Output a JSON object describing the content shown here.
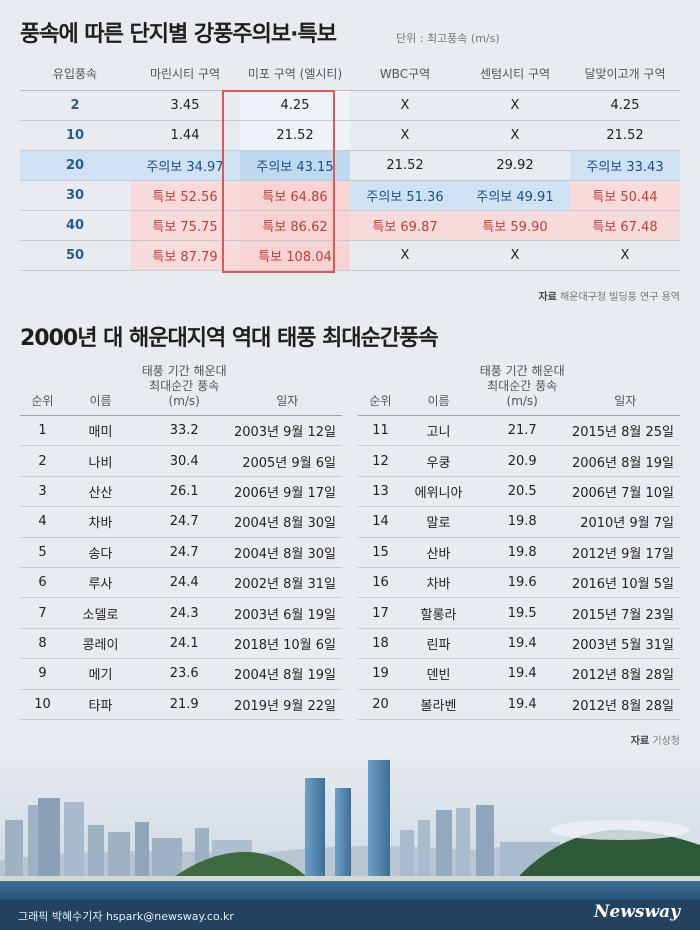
{
  "title1": "풍속에 따른 단지별 강풍주의보·특보",
  "unit": "단위 : 최고풍속 (m/s)",
  "table1": {
    "headers": [
      "유입풍속",
      "마린시티 구역",
      "미포 구역 (엘시티)",
      "WBC구역",
      "센텀시티 구역",
      "달맞이고개 구역"
    ],
    "rows": [
      [
        "2",
        "3.45",
        "4.25",
        "X",
        "X",
        "4.25"
      ],
      [
        "10",
        "1.44",
        "21.52",
        "X",
        "X",
        "21.52"
      ],
      [
        "20",
        "주의보 34.97",
        "주의보 43.15",
        "21.52",
        "29.92",
        "주의보 33.43"
      ],
      [
        "30",
        "특보 52.56",
        "특보 64.86",
        "주의보 51.36",
        "주의보 49.91",
        "특보 50.44"
      ],
      [
        "40",
        "특보 75.75",
        "특보 86.62",
        "특보 69.87",
        "특보 59.90",
        "특보 67.48"
      ],
      [
        "50",
        "특보 87.79",
        "특보 108.04",
        "X",
        "X",
        "X"
      ]
    ]
  },
  "source1_label": "자료",
  "source1": "해운대구청 빌딩풍 연구 용역",
  "title2": "2000년 대 해운대지역 역대 태풍 최대순간풍속",
  "table2": {
    "headers": [
      "순위",
      "이름",
      "태풍 기간 해운대 최대순간 풍속(m/s)",
      "일자"
    ],
    "left": [
      [
        "1",
        "매미",
        "33.2",
        "2003년 9월 12일"
      ],
      [
        "2",
        "나비",
        "30.4",
        "2005년 9월 6일"
      ],
      [
        "3",
        "산산",
        "26.1",
        "2006년 9월 17일"
      ],
      [
        "4",
        "차바",
        "24.7",
        "2004년 8월 30일"
      ],
      [
        "5",
        "송다",
        "24.7",
        "2004년 8월 30일"
      ],
      [
        "6",
        "루사",
        "24.4",
        "2002년 8월 31일"
      ],
      [
        "7",
        "소델로",
        "24.3",
        "2003년 6월 19일"
      ],
      [
        "8",
        "콩레이",
        "24.1",
        "2018년 10월 6일"
      ],
      [
        "9",
        "메기",
        "23.6",
        "2004년 8월 19일"
      ],
      [
        "10",
        "타파",
        "21.9",
        "2019년 9월 22일"
      ]
    ],
    "right": [
      [
        "11",
        "고니",
        "21.7",
        "2015년 8월 25일"
      ],
      [
        "12",
        "우쿵",
        "20.9",
        "2006년 8월 19일"
      ],
      [
        "13",
        "에위니아",
        "20.5",
        "2006년 7월 10일"
      ],
      [
        "14",
        "말로",
        "19.8",
        "2010년 9월 7일"
      ],
      [
        "15",
        "산바",
        "19.8",
        "2012년 9월 17일"
      ],
      [
        "16",
        "차바",
        "19.6",
        "2016년 10월 5일"
      ],
      [
        "17",
        "할롱라",
        "19.5",
        "2015년 7월 23일"
      ],
      [
        "18",
        "린파",
        "19.4",
        "2003년 5월 31일"
      ],
      [
        "19",
        "덴빈",
        "19.4",
        "2012년 8월 28일"
      ],
      [
        "20",
        "볼라벤",
        "19.4",
        "2012년 8월 28일"
      ]
    ]
  },
  "source2_label": "자료",
  "source2": "기상청",
  "credit": "그래픽 박혜수기자 hspark@newsway.co.kr",
  "logo": "Newsway",
  "colors": {
    "warning_bg": "#cfe2f3",
    "alert_bg": "#f7dada",
    "alert_text": "#c43b3b",
    "highlight_border": "#e05555",
    "footer": "#23425f"
  }
}
